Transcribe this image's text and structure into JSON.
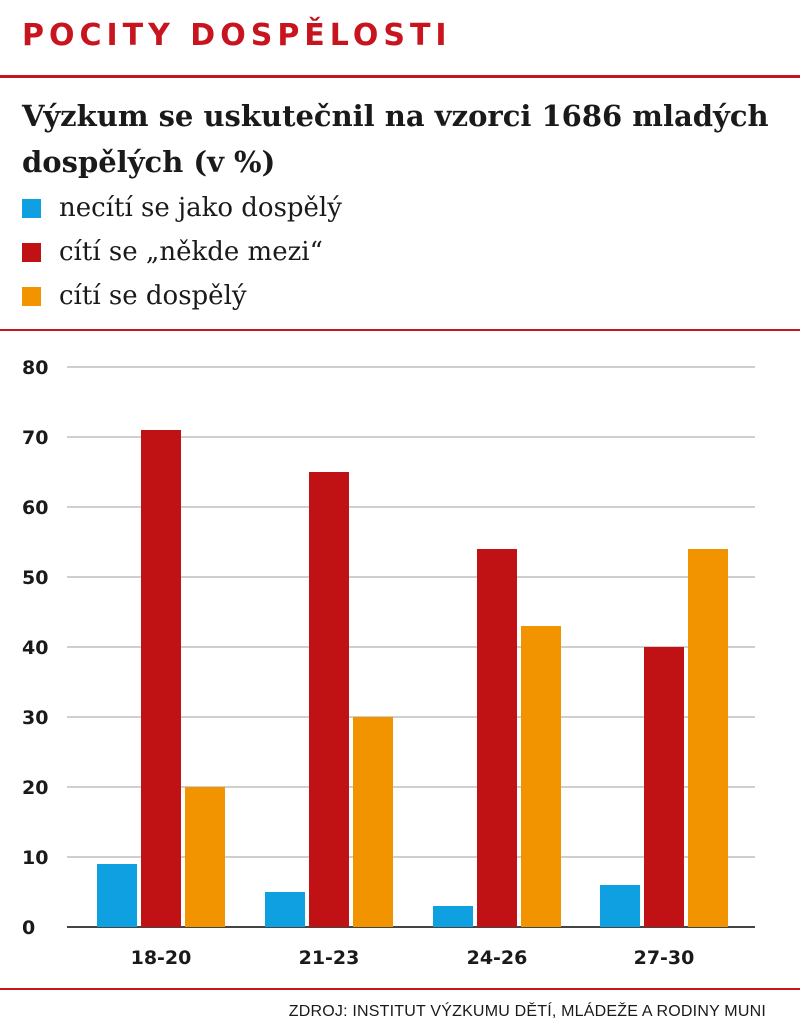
{
  "header": {
    "kicker": "POCITY DOSPĚLOSTI"
  },
  "chart_data": {
    "type": "bar",
    "title": "Výzkum se uskutečnil na vzorci 1686 mladých dospělých (v %)",
    "categories": [
      "18-20",
      "21-23",
      "24-26",
      "27-30"
    ],
    "series": [
      {
        "name": "necítí se jako dospělý",
        "color": "#0ea0e0",
        "values": [
          9,
          5,
          3,
          6
        ]
      },
      {
        "name": "cítí se „někde mezi“",
        "color": "#c01214",
        "values": [
          71,
          65,
          54,
          40
        ]
      },
      {
        "name": "cítí se dospělý",
        "color": "#f29400",
        "values": [
          20,
          30,
          43,
          54
        ]
      }
    ],
    "ylim": [
      0,
      80
    ],
    "yticks": [
      0,
      10,
      20,
      30,
      40,
      50,
      60,
      70,
      80
    ],
    "grid": true,
    "legend": "top-left"
  },
  "footer": {
    "source": "ZDROJ: INSTITUT VÝZKUMU DĚTÍ, MLÁDEŽE A RODINY MUNI"
  }
}
